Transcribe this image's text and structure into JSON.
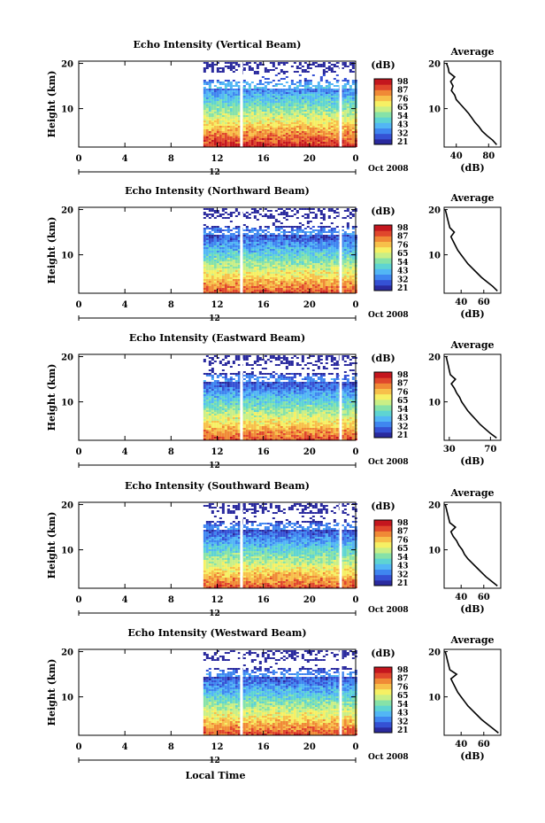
{
  "colors": {
    "colormap": [
      "#2a2a9e",
      "#3551d4",
      "#3f86f0",
      "#52b6f5",
      "#5ed4d2",
      "#86e2a8",
      "#c9ef86",
      "#f6f064",
      "#f7c04a",
      "#f08a36",
      "#e0472c",
      "#c4161e"
    ],
    "ink": "#000000",
    "gap": "#ffffff"
  },
  "common": {
    "xlabel": "Local Time",
    "ylabel": "Height (km)",
    "date_label": "Oct 2008",
    "date_tick": "12",
    "x_ticks": [
      "0",
      "4",
      "8",
      "12",
      "16",
      "20",
      "0"
    ],
    "y_ticks": [
      "20",
      "10"
    ],
    "colorbar_title": "(dB)",
    "average_title": "Average",
    "average_xlabel": "(dB)"
  },
  "chart_data": [
    {
      "type": "heatmap",
      "title": "Echo Intensity (Vertical Beam)",
      "x_range_hours": [
        0,
        24
      ],
      "data_start_hour": 10.8,
      "missing_columns_hours": [
        14.1,
        22.7
      ],
      "ylim_km": [
        1.5,
        20.5
      ],
      "colorbar_ticks": [
        "98",
        "87",
        "76",
        "65",
        "54",
        "43",
        "32",
        "21"
      ],
      "average_profile": {
        "xticks": [
          "40",
          "80"
        ],
        "xlim": [
          25,
          95
        ],
        "height_km": [
          2,
          3,
          4,
          5,
          6,
          7,
          8,
          9,
          10,
          11,
          12,
          13,
          14,
          15,
          16,
          17,
          18,
          19,
          20
        ],
        "dB": [
          90,
          85,
          78,
          72,
          68,
          63,
          59,
          55,
          50,
          45,
          40,
          38,
          34,
          36,
          33,
          38,
          31,
          30,
          28
        ]
      }
    },
    {
      "type": "heatmap",
      "title": "Echo Intensity (Northward Beam)",
      "x_range_hours": [
        0,
        24
      ],
      "data_start_hour": 10.8,
      "missing_columns_hours": [
        14.1,
        22.7
      ],
      "ylim_km": [
        1.5,
        20.5
      ],
      "colorbar_ticks": [
        "98",
        "87",
        "76",
        "65",
        "54",
        "43",
        "32",
        "21"
      ],
      "average_profile": {
        "xticks": [
          "40",
          "60"
        ],
        "xlim": [
          25,
          75
        ],
        "height_km": [
          2,
          3,
          4,
          5,
          6,
          7,
          8,
          9,
          10,
          11,
          12,
          13,
          14,
          15,
          16,
          17,
          18,
          19,
          20
        ],
        "dB": [
          72,
          68,
          63,
          58,
          54,
          50,
          46,
          43,
          40,
          37,
          35,
          33,
          31,
          34,
          30,
          29,
          28,
          27,
          26
        ]
      }
    },
    {
      "type": "heatmap",
      "title": "Echo Intensity (Eastward Beam)",
      "x_range_hours": [
        0,
        24
      ],
      "data_start_hour": 10.8,
      "missing_columns_hours": [
        14.1,
        22.7
      ],
      "ylim_km": [
        1.5,
        20.5
      ],
      "colorbar_ticks": [
        "98",
        "87",
        "76",
        "65",
        "54",
        "43",
        "32",
        "21"
      ],
      "average_profile": {
        "xticks": [
          "30",
          "70"
        ],
        "xlim": [
          25,
          80
        ],
        "height_km": [
          2,
          3,
          4,
          5,
          6,
          7,
          8,
          9,
          10,
          11,
          12,
          13,
          14,
          15,
          16,
          17,
          18,
          19,
          20
        ],
        "dB": [
          76,
          70,
          65,
          60,
          56,
          52,
          48,
          45,
          42,
          40,
          37,
          35,
          32,
          36,
          31,
          30,
          29,
          28,
          27
        ]
      }
    },
    {
      "type": "heatmap",
      "title": "Echo Intensity (Southward Beam)",
      "x_range_hours": [
        0,
        24
      ],
      "data_start_hour": 10.8,
      "missing_columns_hours": [
        14.1,
        22.7
      ],
      "ylim_km": [
        1.5,
        20.5
      ],
      "colorbar_ticks": [
        "98",
        "87",
        "76",
        "65",
        "54",
        "43",
        "32",
        "21"
      ],
      "average_profile": {
        "xticks": [
          "40",
          "60"
        ],
        "xlim": [
          25,
          75
        ],
        "height_km": [
          2,
          3,
          4,
          5,
          6,
          7,
          8,
          9,
          10,
          11,
          12,
          13,
          14,
          15,
          16,
          17,
          18,
          19,
          20
        ],
        "dB": [
          72,
          67,
          62,
          58,
          54,
          50,
          46,
          43,
          41,
          38,
          36,
          33,
          31,
          35,
          30,
          29,
          28,
          27,
          26
        ]
      }
    },
    {
      "type": "heatmap",
      "title": "Echo Intensity (Westward Beam)",
      "x_range_hours": [
        0,
        24
      ],
      "data_start_hour": 10.8,
      "missing_columns_hours": [
        14.1,
        22.7
      ],
      "ylim_km": [
        1.5,
        20.5
      ],
      "colorbar_ticks": [
        "98",
        "87",
        "76",
        "65",
        "54",
        "43",
        "32",
        "21"
      ],
      "average_profile": {
        "xticks": [
          "40",
          "60"
        ],
        "xlim": [
          25,
          75
        ],
        "height_km": [
          2,
          3,
          4,
          5,
          6,
          7,
          8,
          9,
          10,
          11,
          12,
          13,
          14,
          15,
          16,
          17,
          18,
          19,
          20
        ],
        "dB": [
          73,
          68,
          63,
          58,
          54,
          50,
          46,
          43,
          40,
          37,
          35,
          33,
          31,
          36,
          30,
          29,
          28,
          27,
          26
        ]
      }
    }
  ]
}
